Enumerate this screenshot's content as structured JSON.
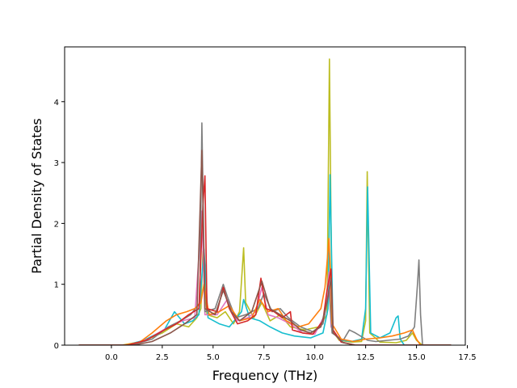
{
  "chart_data": {
    "type": "line",
    "title": "",
    "xlabel": "Frequency (THz)",
    "ylabel": "Partial Density of States",
    "xlim": [
      -2.3,
      17.4
    ],
    "ylim": [
      0,
      4.9
    ],
    "xticks": [
      0.0,
      2.5,
      5.0,
      7.5,
      10.0,
      12.5,
      15.0,
      17.5
    ],
    "xtick_labels": [
      "0.0",
      "2.5",
      "5.0",
      "7.5",
      "10.0",
      "12.5",
      "15.0",
      "17.5"
    ],
    "yticks": [
      0,
      1,
      2,
      3,
      4
    ],
    "ytick_labels": [
      "0",
      "1",
      "2",
      "3",
      "4"
    ],
    "grid": false,
    "legend": "none",
    "series": [
      {
        "color": "#bcbd22",
        "points": [
          [
            -1.6,
            0
          ],
          [
            0.5,
            0
          ],
          [
            1.5,
            0.06
          ],
          [
            2.5,
            0.2
          ],
          [
            3.2,
            0.35
          ],
          [
            3.8,
            0.3
          ],
          [
            4.2,
            0.45
          ],
          [
            4.4,
            0.6
          ],
          [
            4.5,
            1.55
          ],
          [
            4.7,
            0.5
          ],
          [
            5.2,
            0.45
          ],
          [
            5.6,
            0.55
          ],
          [
            6.0,
            0.35
          ],
          [
            6.3,
            0.55
          ],
          [
            6.5,
            1.6
          ],
          [
            6.6,
            0.7
          ],
          [
            7.0,
            0.45
          ],
          [
            7.4,
            0.7
          ],
          [
            7.8,
            0.4
          ],
          [
            8.3,
            0.5
          ],
          [
            8.8,
            0.3
          ],
          [
            9.5,
            0.25
          ],
          [
            10.2,
            0.3
          ],
          [
            10.6,
            0.5
          ],
          [
            10.72,
            4.7
          ],
          [
            10.85,
            0.25
          ],
          [
            11.2,
            0.08
          ],
          [
            11.8,
            0.05
          ],
          [
            12.3,
            0.06
          ],
          [
            12.5,
            0.4
          ],
          [
            12.58,
            2.85
          ],
          [
            12.7,
            0.2
          ],
          [
            13.2,
            0.05
          ],
          [
            14.0,
            0.04
          ],
          [
            14.5,
            0.08
          ],
          [
            14.8,
            0.2
          ],
          [
            15.0,
            0.08
          ],
          [
            15.3,
            0
          ],
          [
            16.7,
            0
          ]
        ]
      },
      {
        "color": "#17becf",
        "points": [
          [
            -1.6,
            0
          ],
          [
            0.7,
            0
          ],
          [
            1.6,
            0.08
          ],
          [
            2.6,
            0.25
          ],
          [
            3.1,
            0.55
          ],
          [
            3.6,
            0.35
          ],
          [
            4.0,
            0.4
          ],
          [
            4.3,
            0.5
          ],
          [
            4.55,
            1.58
          ],
          [
            4.75,
            0.45
          ],
          [
            5.3,
            0.35
          ],
          [
            5.8,
            0.3
          ],
          [
            6.4,
            0.55
          ],
          [
            6.5,
            0.75
          ],
          [
            6.8,
            0.45
          ],
          [
            7.3,
            0.4
          ],
          [
            7.8,
            0.3
          ],
          [
            8.4,
            0.2
          ],
          [
            9.0,
            0.15
          ],
          [
            9.8,
            0.12
          ],
          [
            10.4,
            0.2
          ],
          [
            10.65,
            0.6
          ],
          [
            10.75,
            2.8
          ],
          [
            10.9,
            0.2
          ],
          [
            11.3,
            0.08
          ],
          [
            11.8,
            0.06
          ],
          [
            12.3,
            0.1
          ],
          [
            12.5,
            0.6
          ],
          [
            12.6,
            2.6
          ],
          [
            12.75,
            0.2
          ],
          [
            13.2,
            0.12
          ],
          [
            13.7,
            0.2
          ],
          [
            14.0,
            0.45
          ],
          [
            14.1,
            0.48
          ],
          [
            14.2,
            0.1
          ],
          [
            14.4,
            0
          ],
          [
            16.7,
            0
          ]
        ]
      },
      {
        "color": "#e377c2",
        "points": [
          [
            -1.6,
            0
          ],
          [
            0.9,
            0
          ],
          [
            1.8,
            0.1
          ],
          [
            2.8,
            0.3
          ],
          [
            3.5,
            0.4
          ],
          [
            4.1,
            0.45
          ],
          [
            4.45,
            2.2
          ],
          [
            4.6,
            0.5
          ],
          [
            5.2,
            0.5
          ],
          [
            5.7,
            0.75
          ],
          [
            6.2,
            0.4
          ],
          [
            6.7,
            0.45
          ],
          [
            7.1,
            0.55
          ],
          [
            7.4,
            0.95
          ],
          [
            7.7,
            0.5
          ],
          [
            8.2,
            0.45
          ],
          [
            8.8,
            0.35
          ],
          [
            9.4,
            0.2
          ],
          [
            10.0,
            0.18
          ],
          [
            10.5,
            0.5
          ],
          [
            10.7,
            1.2
          ],
          [
            10.8,
            0.3
          ],
          [
            11.3,
            0.05
          ],
          [
            12.0,
            0
          ],
          [
            16.7,
            0
          ]
        ]
      },
      {
        "color": "#7f7f7f",
        "points": [
          [
            -1.6,
            0
          ],
          [
            1.0,
            0
          ],
          [
            2.0,
            0.1
          ],
          [
            2.8,
            0.3
          ],
          [
            3.4,
            0.4
          ],
          [
            3.9,
            0.5
          ],
          [
            4.35,
            0.7
          ],
          [
            4.45,
            3.65
          ],
          [
            4.6,
            0.55
          ],
          [
            5.1,
            0.6
          ],
          [
            5.5,
            1.0
          ],
          [
            5.7,
            0.8
          ],
          [
            6.1,
            0.45
          ],
          [
            6.6,
            0.5
          ],
          [
            7.2,
            0.6
          ],
          [
            7.5,
            0.85
          ],
          [
            7.9,
            0.55
          ],
          [
            8.3,
            0.6
          ],
          [
            8.7,
            0.45
          ],
          [
            9.3,
            0.3
          ],
          [
            9.9,
            0.22
          ],
          [
            10.4,
            0.35
          ],
          [
            10.7,
            0.9
          ],
          [
            10.85,
            0.2
          ],
          [
            11.4,
            0.08
          ],
          [
            11.7,
            0.25
          ],
          [
            12.0,
            0.2
          ],
          [
            12.4,
            0.12
          ],
          [
            12.6,
            0.08
          ],
          [
            13.0,
            0.06
          ],
          [
            13.6,
            0.08
          ],
          [
            14.2,
            0.1
          ],
          [
            14.6,
            0.15
          ],
          [
            14.9,
            0.3
          ],
          [
            15.05,
            1.0
          ],
          [
            15.12,
            1.4
          ],
          [
            15.2,
            0.5
          ],
          [
            15.3,
            0
          ],
          [
            16.7,
            0
          ]
        ]
      },
      {
        "color": "#ff7f0e",
        "points": [
          [
            -1.6,
            0
          ],
          [
            0.6,
            0
          ],
          [
            1.4,
            0.05
          ],
          [
            2.0,
            0.2
          ],
          [
            2.7,
            0.4
          ],
          [
            3.2,
            0.5
          ],
          [
            3.7,
            0.55
          ],
          [
            4.1,
            0.6
          ],
          [
            4.4,
            0.7
          ],
          [
            4.55,
            1.0
          ],
          [
            4.8,
            0.5
          ],
          [
            5.3,
            0.55
          ],
          [
            5.8,
            0.65
          ],
          [
            6.3,
            0.4
          ],
          [
            6.9,
            0.45
          ],
          [
            7.3,
            0.75
          ],
          [
            7.7,
            0.55
          ],
          [
            8.2,
            0.6
          ],
          [
            8.6,
            0.4
          ],
          [
            9.2,
            0.3
          ],
          [
            9.7,
            0.35
          ],
          [
            10.3,
            0.6
          ],
          [
            10.5,
            0.95
          ],
          [
            10.7,
            1.75
          ],
          [
            10.85,
            0.35
          ],
          [
            11.3,
            0.1
          ],
          [
            11.9,
            0.06
          ],
          [
            12.5,
            0.1
          ],
          [
            13.2,
            0.12
          ],
          [
            13.8,
            0.15
          ],
          [
            14.4,
            0.2
          ],
          [
            14.8,
            0.25
          ],
          [
            15.0,
            0.1
          ],
          [
            15.2,
            0
          ],
          [
            16.7,
            0
          ]
        ]
      },
      {
        "color": "#d62728",
        "points": [
          [
            -1.6,
            0
          ],
          [
            0.8,
            0
          ],
          [
            1.7,
            0.08
          ],
          [
            2.6,
            0.25
          ],
          [
            3.2,
            0.35
          ],
          [
            3.8,
            0.5
          ],
          [
            4.3,
            0.6
          ],
          [
            4.5,
            2.3
          ],
          [
            4.6,
            2.78
          ],
          [
            4.7,
            0.6
          ],
          [
            5.2,
            0.55
          ],
          [
            5.5,
            0.95
          ],
          [
            5.8,
            0.6
          ],
          [
            6.2,
            0.35
          ],
          [
            6.7,
            0.4
          ],
          [
            7.1,
            0.5
          ],
          [
            7.35,
            1.1
          ],
          [
            7.6,
            0.6
          ],
          [
            8.0,
            0.55
          ],
          [
            8.4,
            0.45
          ],
          [
            8.8,
            0.55
          ],
          [
            8.9,
            0.25
          ],
          [
            9.4,
            0.2
          ],
          [
            9.9,
            0.18
          ],
          [
            10.4,
            0.4
          ],
          [
            10.6,
            0.9
          ],
          [
            10.8,
            1.25
          ],
          [
            10.9,
            0.25
          ],
          [
            11.3,
            0.05
          ],
          [
            12.0,
            0
          ],
          [
            16.7,
            0
          ]
        ]
      },
      {
        "color": "#8c564b",
        "points": [
          [
            -1.6,
            0
          ],
          [
            1.1,
            0
          ],
          [
            2.0,
            0.06
          ],
          [
            2.9,
            0.2
          ],
          [
            3.6,
            0.35
          ],
          [
            4.2,
            0.5
          ],
          [
            4.45,
            3.2
          ],
          [
            4.6,
            0.6
          ],
          [
            5.1,
            0.5
          ],
          [
            5.5,
            0.9
          ],
          [
            5.9,
            0.55
          ],
          [
            6.3,
            0.4
          ],
          [
            6.9,
            0.55
          ],
          [
            7.4,
            1.05
          ],
          [
            7.8,
            0.6
          ],
          [
            8.3,
            0.5
          ],
          [
            8.8,
            0.4
          ],
          [
            9.3,
            0.25
          ],
          [
            9.8,
            0.2
          ],
          [
            10.3,
            0.3
          ],
          [
            10.6,
            0.7
          ],
          [
            10.8,
            1.1
          ],
          [
            10.9,
            0.2
          ],
          [
            11.4,
            0.04
          ],
          [
            12.0,
            0
          ],
          [
            16.7,
            0
          ]
        ]
      }
    ]
  }
}
